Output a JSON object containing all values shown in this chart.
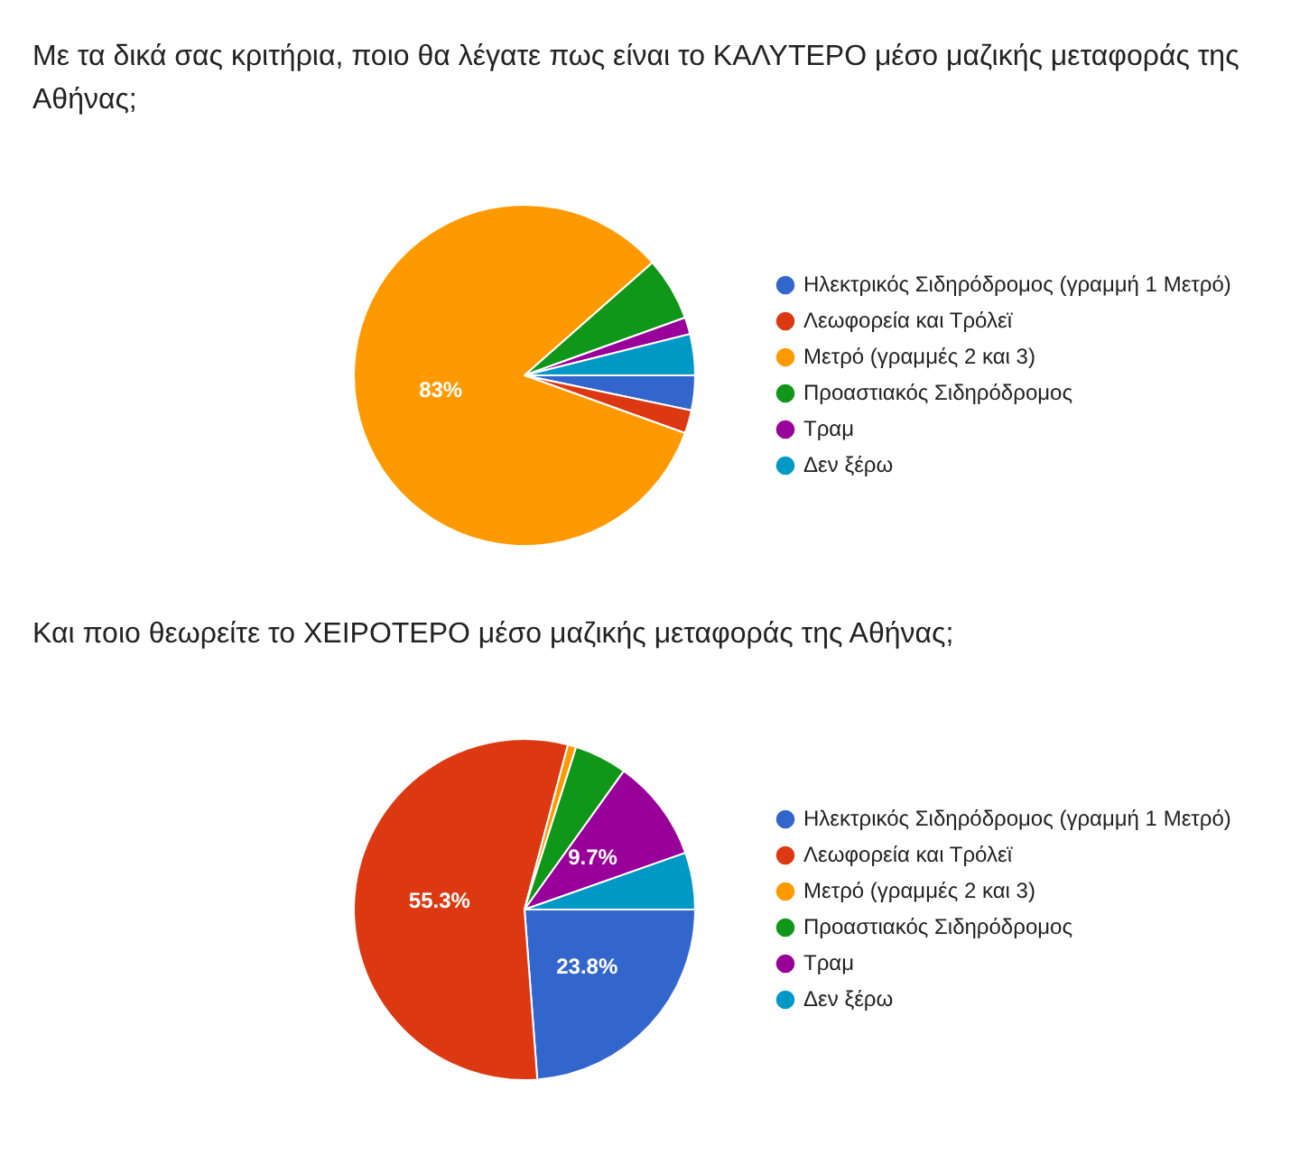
{
  "chart_data": [
    {
      "type": "pie",
      "title": "Με τα δικά σας κριτήρια, ποιο θα λέγατε πως είναι το ΚΑΛΥΤΕΡΟ μέσο μαζικής μεταφοράς της Αθήνας;",
      "categories": [
        "Ηλεκτρικός Σιδηρόδρομος (γραμμή 1 Μετρό)",
        "Λεωφορεία και Τρόλεϊ",
        "Μετρό (γραμμές 2 και 3)",
        "Προαστιακός Σιδηρόδρομος",
        "Τραμ",
        "Δεν ξέρω"
      ],
      "values": [
        3.3,
        2.2,
        83,
        6,
        1.6,
        3.9
      ],
      "value_labels": [
        null,
        null,
        "83%",
        null,
        null,
        null
      ],
      "colors": [
        "#3366cc",
        "#dc3912",
        "#ff9900",
        "#109618",
        "#990099",
        "#0099c6"
      ],
      "legend": "right"
    },
    {
      "type": "pie",
      "title": "Και ποιο θεωρείτε το ΧΕΙΡΟΤΕΡΟ μέσο μαζικής μεταφοράς της Αθήνας;",
      "categories": [
        "Ηλεκτρικός Σιδηρόδρομος (γραμμή 1 Μετρό)",
        "Λεωφορεία και Τρόλεϊ",
        "Μετρό (γραμμές 2 και 3)",
        "Προαστιακός Σιδηρόδρομος",
        "Τραμ",
        "Δεν ξέρω"
      ],
      "values": [
        23.8,
        55.3,
        0.8,
        5,
        9.7,
        5.4
      ],
      "value_labels": [
        "23.8%",
        "55.3%",
        null,
        null,
        "9.7%",
        null
      ],
      "colors": [
        "#3366cc",
        "#dc3912",
        "#ff9900",
        "#109618",
        "#990099",
        "#0099c6"
      ],
      "legend": "right"
    }
  ]
}
